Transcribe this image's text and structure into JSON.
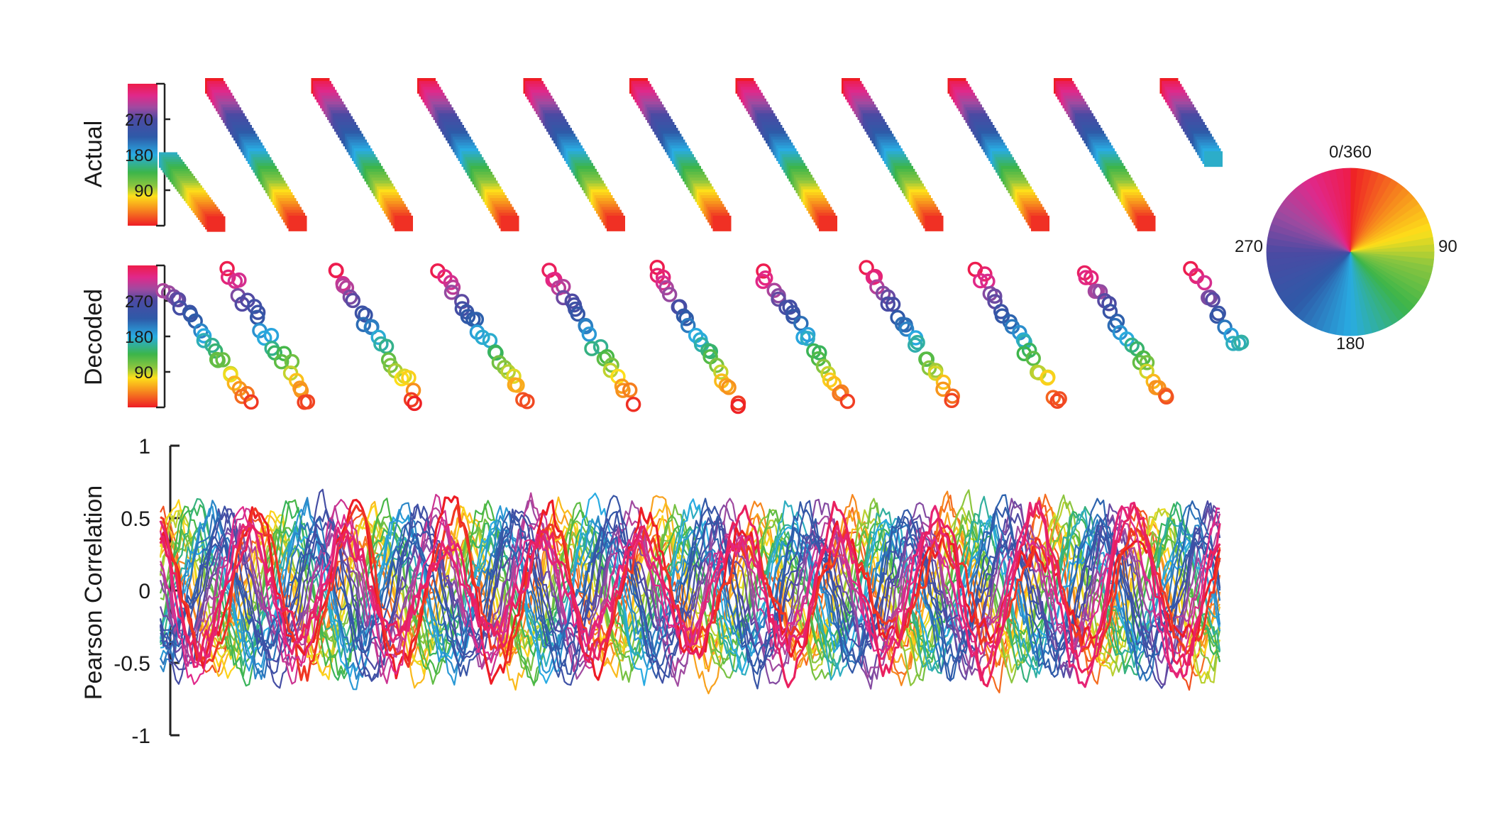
{
  "chart_data": [
    {
      "type": "scatter",
      "panel": "actual",
      "ylabel": "Actual",
      "colorbar": {
        "ticks": [
          90,
          180,
          270
        ],
        "range": [
          0,
          360
        ]
      },
      "segments": 11,
      "segment_length": 96,
      "value_range": [
        0,
        360
      ]
    },
    {
      "type": "scatter",
      "panel": "decoded",
      "ylabel": "Decoded",
      "colorbar": {
        "ticks": [
          90,
          180,
          270
        ],
        "range": [
          0,
          360
        ]
      },
      "segments": 11,
      "marker": "open-circle",
      "value_range": [
        0,
        360
      ]
    },
    {
      "type": "line",
      "panel": "correlation",
      "ylabel": "Pearson Correlation",
      "ylim": [
        -1,
        1
      ],
      "yticks": [
        1,
        0.5,
        0,
        -0.5,
        -1
      ],
      "ytick_labels": [
        "1",
        "0.5",
        "0",
        "-0.5",
        "-1"
      ],
      "series_count": 36,
      "series_color_by": "orientation (deg)",
      "period_samples": 96,
      "samples": 1040,
      "amplitude": 0.55,
      "noise": 0.08
    }
  ],
  "wheel": {
    "labels": {
      "top": "0/360",
      "right": "90",
      "bottom": "180",
      "left": "270"
    },
    "colors": [
      "#ee1845",
      "#f36d2a",
      "#f7a41c",
      "#f5d51a",
      "#a7cf2c",
      "#56b848",
      "#4fb6a2",
      "#47b5e6",
      "#3a70c2",
      "#3a4aa6",
      "#6a4aa3",
      "#a34a9f",
      "#d8308a"
    ]
  },
  "hue_stops": [
    {
      "deg": 0,
      "color": "#ee1c25"
    },
    {
      "deg": 45,
      "color": "#f7941d"
    },
    {
      "deg": 75,
      "color": "#fde01a"
    },
    {
      "deg": 100,
      "color": "#8dc63f"
    },
    {
      "deg": 135,
      "color": "#3cb54a"
    },
    {
      "deg": 180,
      "color": "#29abe2"
    },
    {
      "deg": 225,
      "color": "#2e5aa8"
    },
    {
      "deg": 270,
      "color": "#4b4aa3"
    },
    {
      "deg": 300,
      "color": "#a04aa0"
    },
    {
      "deg": 330,
      "color": "#e0288a"
    },
    {
      "deg": 360,
      "color": "#ee1c4a"
    }
  ]
}
